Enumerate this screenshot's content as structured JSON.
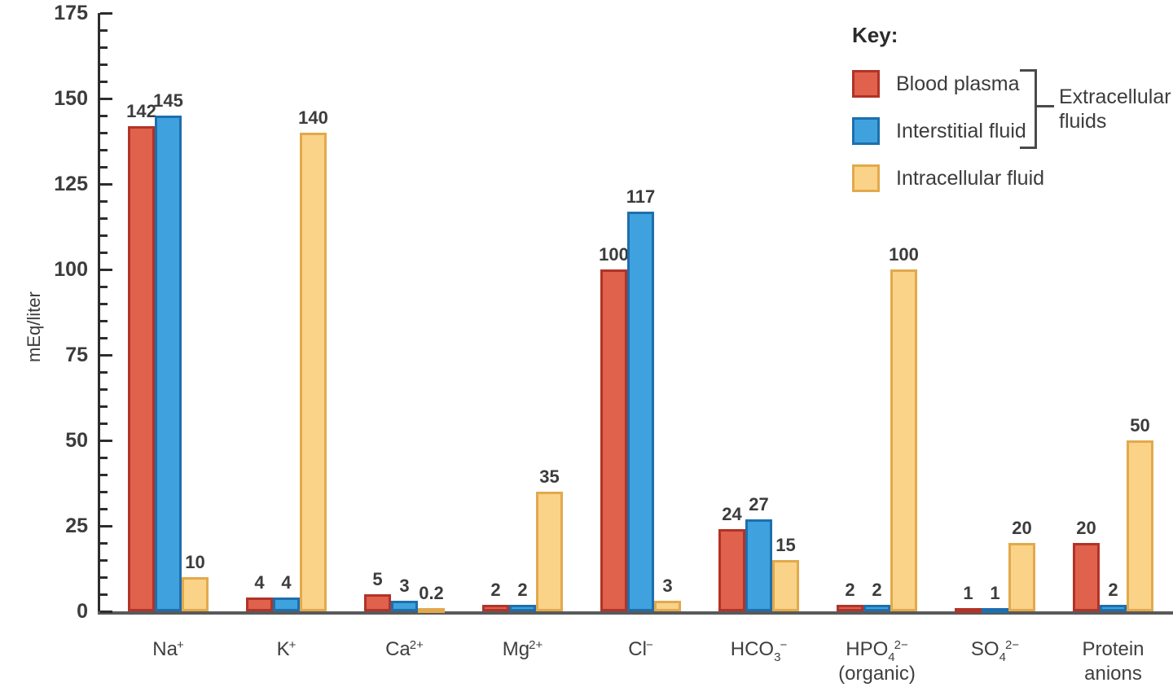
{
  "legend": {
    "title": "Key:",
    "bracket_label": "Extracellular fluids"
  },
  "chart_data": {
    "type": "bar",
    "title": "",
    "xlabel": "",
    "ylabel": "mEq/liter",
    "ylim": [
      0,
      175
    ],
    "y_major_ticks": [
      0,
      25,
      50,
      75,
      100,
      125,
      150,
      175
    ],
    "y_minor_tick_step": 5,
    "grid": false,
    "legend_position": "top-right",
    "value_labels_shown": true,
    "categories": [
      {
        "id": "na",
        "main": "Na",
        "sub": "",
        "sup": "+",
        "line2": ""
      },
      {
        "id": "k",
        "main": "K",
        "sub": "",
        "sup": "+",
        "line2": ""
      },
      {
        "id": "ca",
        "main": "Ca",
        "sub": "",
        "sup": "2+",
        "line2": ""
      },
      {
        "id": "mg",
        "main": "Mg",
        "sub": "",
        "sup": "2+",
        "line2": ""
      },
      {
        "id": "cl",
        "main": "Cl",
        "sub": "",
        "sup": "−",
        "line2": ""
      },
      {
        "id": "hco3",
        "main": "HCO",
        "sub": "3",
        "sup": "−",
        "line2": ""
      },
      {
        "id": "hpo4",
        "main": "HPO",
        "sub": "4",
        "sup": "2−",
        "line2": "(organic)"
      },
      {
        "id": "so4",
        "main": "SO",
        "sub": "4",
        "sup": "2−",
        "line2": ""
      },
      {
        "id": "protein",
        "main": "Protein",
        "sub": "",
        "sup": "",
        "line2": "anions"
      }
    ],
    "series": [
      {
        "name": "Blood plasma",
        "fill": "#e0614c",
        "stroke": "#b23327",
        "values": [
          142,
          4,
          5,
          2,
          100,
          24,
          2,
          1,
          20
        ]
      },
      {
        "name": "Interstitial fluid",
        "fill": "#3fa2de",
        "stroke": "#1d6fae",
        "values": [
          145,
          4,
          3,
          2,
          117,
          27,
          2,
          1,
          2
        ]
      },
      {
        "name": "Intracellular fluid",
        "fill": "#fad388",
        "stroke": "#e2a94c",
        "values": [
          10,
          140,
          0.2,
          35,
          3,
          15,
          100,
          20,
          50
        ]
      }
    ],
    "extracellular_group": [
      "Blood plasma",
      "Interstitial fluid"
    ]
  }
}
